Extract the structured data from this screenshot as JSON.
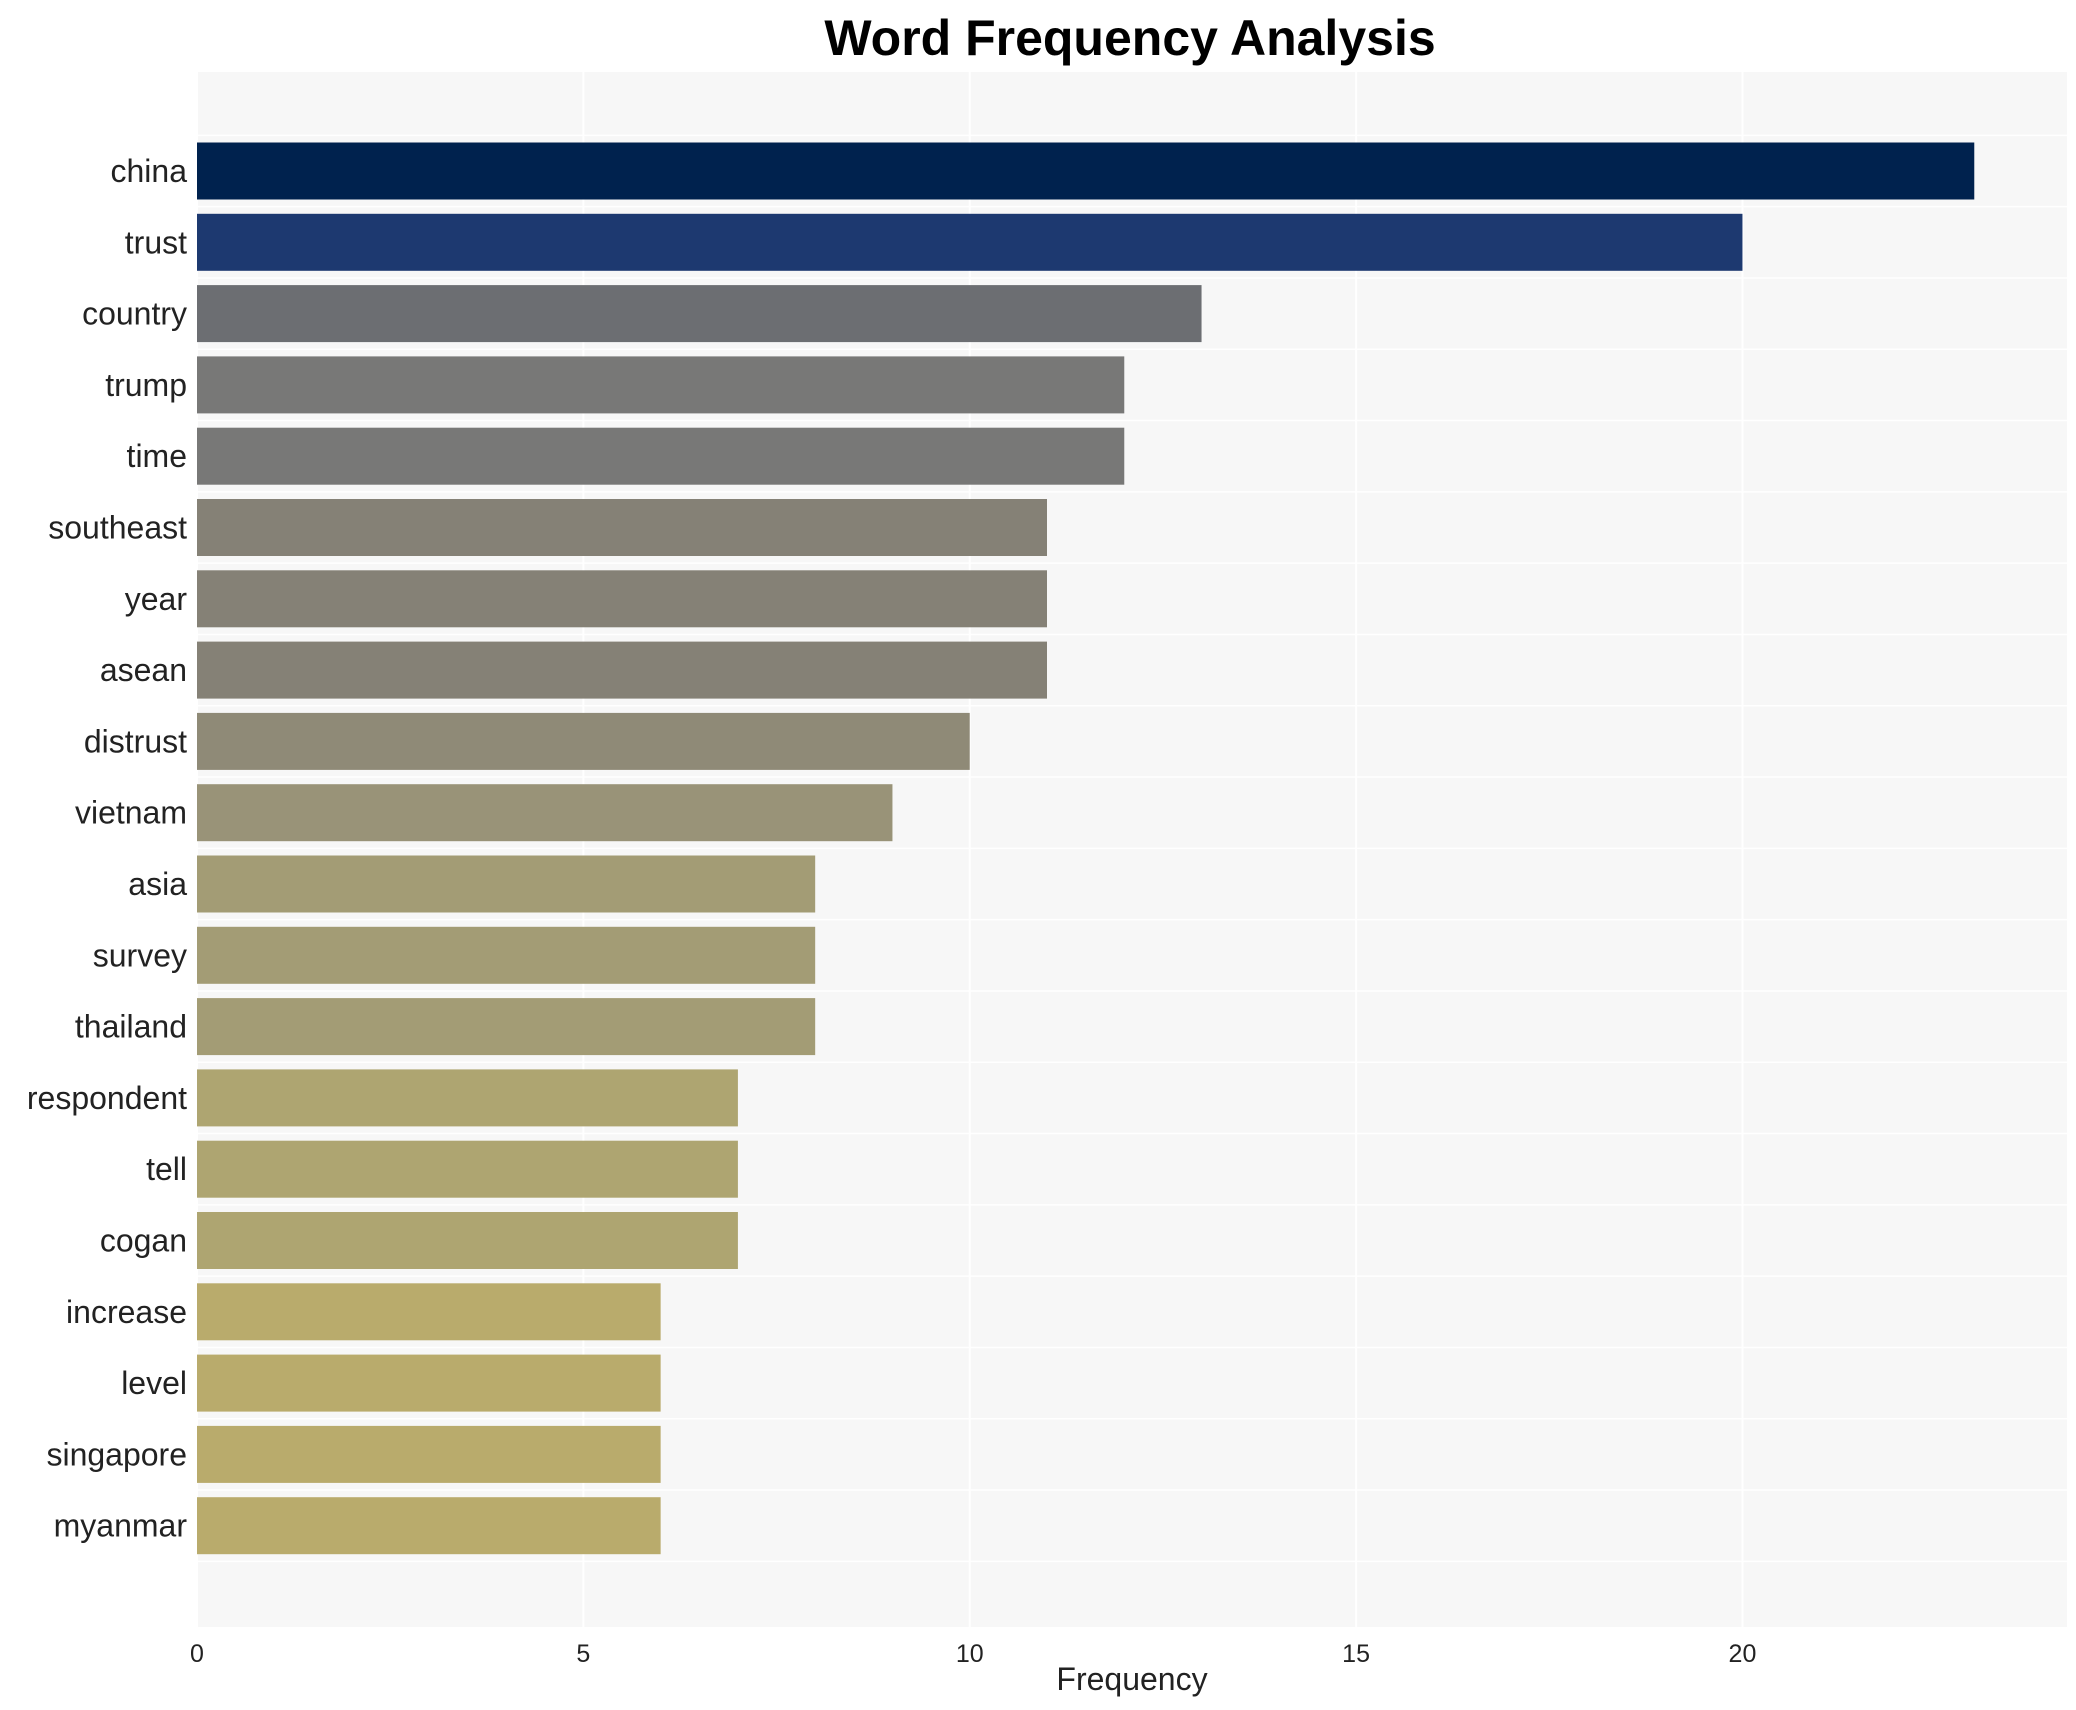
{
  "chart_data": {
    "type": "bar",
    "orientation": "horizontal",
    "title": "Word Frequency Analysis",
    "xlabel": "Frequency",
    "ylabel": "",
    "xlim": [
      0,
      24.2
    ],
    "xticks": [
      0,
      5,
      10,
      15,
      20
    ],
    "grid": true,
    "legend": "none",
    "background_color": "#f7f7f7",
    "categories": [
      "china",
      "trust",
      "country",
      "trump",
      "time",
      "southeast",
      "year",
      "asean",
      "distrust",
      "vietnam",
      "asia",
      "survey",
      "thailand",
      "respondent",
      "tell",
      "cogan",
      "increase",
      "level",
      "singapore",
      "myanmar"
    ],
    "values": [
      23,
      20,
      13,
      12,
      12,
      11,
      11,
      11,
      10,
      9,
      8,
      8,
      8,
      7,
      7,
      7,
      6,
      6,
      6,
      6
    ],
    "colors": [
      "#00224e",
      "#1d3970",
      "#6c6e72",
      "#787877",
      "#787877",
      "#858176",
      "#858176",
      "#858176",
      "#8f8a77",
      "#999378",
      "#a39c75",
      "#a39c75",
      "#a39c75",
      "#aea571",
      "#aea571",
      "#aea571",
      "#b9ab6c",
      "#b9ab6c",
      "#b9ab6c",
      "#b9ab6c"
    ]
  }
}
